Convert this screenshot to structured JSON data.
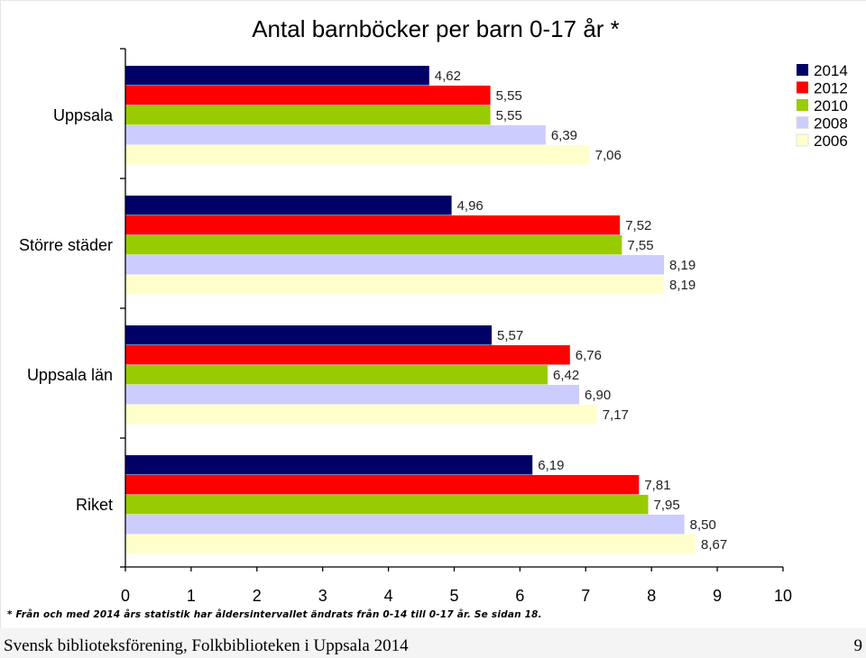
{
  "chart_data": {
    "type": "bar",
    "orientation": "horizontal",
    "title": "Antal barnböcker per barn 0-17 år *",
    "categories": [
      "Uppsala",
      "Större städer",
      "Uppsala län",
      "Riket"
    ],
    "series": [
      {
        "name": "2014",
        "color": "#000066",
        "values": [
          4.62,
          4.96,
          5.57,
          6.19
        ]
      },
      {
        "name": "2012",
        "color": "#ff0000",
        "values": [
          5.55,
          7.52,
          6.76,
          7.81
        ]
      },
      {
        "name": "2010",
        "color": "#99cc00",
        "values": [
          5.55,
          7.55,
          6.42,
          7.95
        ]
      },
      {
        "name": "2008",
        "color": "#ccccff",
        "values": [
          6.39,
          8.19,
          6.9,
          8.5
        ]
      },
      {
        "name": "2006",
        "color": "#ffffcc",
        "values": [
          7.06,
          8.19,
          7.17,
          8.67
        ]
      }
    ],
    "data_labels": [
      [
        "4,62",
        "5,55",
        "5,55",
        "6,39",
        "7,06"
      ],
      [
        "4,96",
        "7,52",
        "7,55",
        "8,19",
        "8,19"
      ],
      [
        "5,57",
        "6,76",
        "6,42",
        "6,90",
        "7,17"
      ],
      [
        "6,19",
        "7,81",
        "7,95",
        "8,50",
        "8,67"
      ]
    ],
    "xlim": [
      0,
      10
    ],
    "xticks": [
      "0",
      "1",
      "2",
      "3",
      "4",
      "5",
      "6",
      "7",
      "8",
      "9",
      "10"
    ],
    "legend_position": "top-right",
    "grid": false
  },
  "footnote": "* Från och med 2014 års statistik har åldersintervallet ändrats från 0-14 till 0-17 år. Se sidan 18.",
  "footer": {
    "left": "Svensk biblioteksförening, Folkbiblioteken i Uppsala 2014",
    "page": "9"
  }
}
